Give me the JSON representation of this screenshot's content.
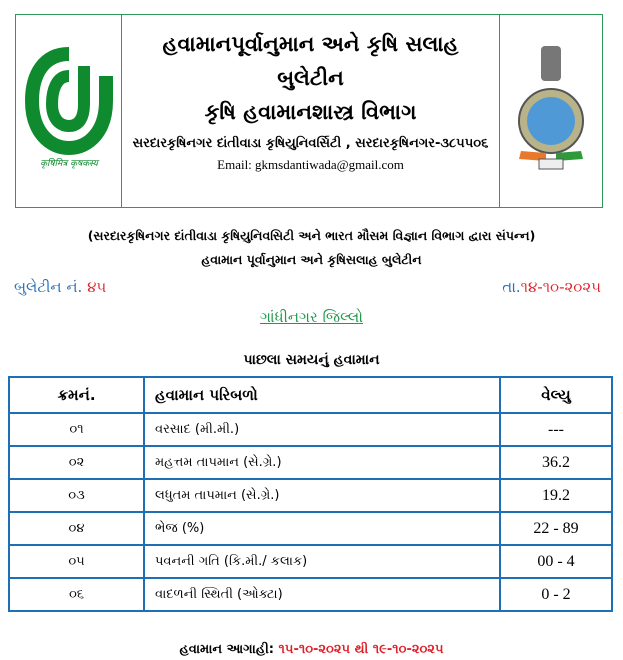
{
  "header": {
    "title": "હવામાનપૂર્વાનુમાન અને કૃષિ સલાહ",
    "subtitle": "બુલેટીન",
    "department": "કૃષિ હવામાનશાસ્ત્ર વિભાગ",
    "address": "સરદારકૃષિનગર દાંતીવાડા કૃષિયુનિવર્સિટી , સરદારકૃષિનગર-૩૮૫૫૦૬",
    "email": "Email: gkmsdantiwada@gmail.com",
    "logo_text": "कृषिमित्र कृषकस्य",
    "logo_color": "#0f8a2e"
  },
  "intro": {
    "line1": "(સરદારકૃષિનગર દાંતીવાડા કૃષિયુનિવસિટી અને ભારત મૌસમ વિજ્ઞાન વિભાગ દ્વારા સંપન્ન)",
    "line2": "હવામાન પૂર્વાનુમાન અને કૃષિસલાહ બુલેટીન"
  },
  "bulletin": {
    "label": "બુલેટીન નં.",
    "number": "૪૫",
    "date_label": "તા.",
    "date": "૧૪-૧૦-૨૦૨૫"
  },
  "district": "ગાંધીનગર જિલ્લો",
  "section_title": "પાછલા સમયનું હવામાન",
  "table": {
    "headers": [
      "ક્રમનં.",
      "હવામાન પરિબળો",
      "વેલ્યુ"
    ],
    "rows": [
      [
        "૦૧",
        "વરસાદ (મી.મી.)",
        "---"
      ],
      [
        "૦૨",
        "મહત્તમ તાપમાન (સે.ગ્રે.)",
        "36.2"
      ],
      [
        "૦૩",
        "લધુતમ તાપમાન (સે.ગ્રે.)",
        "19.2"
      ],
      [
        "૦૪",
        "ભેજ (%)",
        "22 - 89"
      ],
      [
        "૦૫",
        "પવનની ગતિ (કિ.મી./ કલાક)",
        "00 - 4"
      ],
      [
        "૦૬",
        "વાદળની સ્થિતી (ઓક્ટા)",
        "0 - 2"
      ]
    ]
  },
  "forecast": {
    "label": "હવામાન આગાહી:",
    "range": "૧૫-૧૦-૨૦૨૫ થી ૧૯-૧૦-૨૦૨૫"
  }
}
